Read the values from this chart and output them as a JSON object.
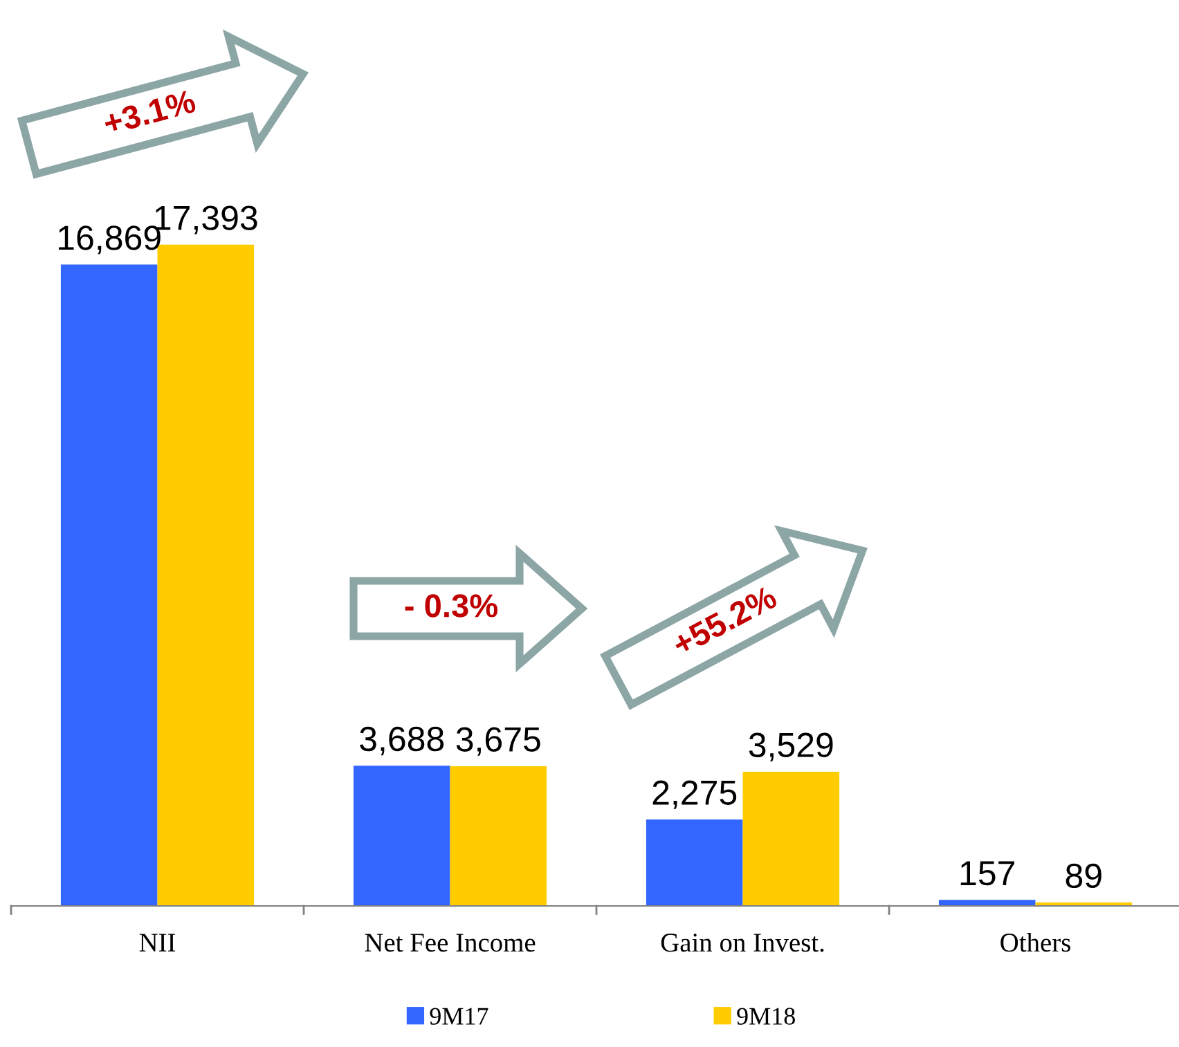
{
  "chart_data": {
    "type": "bar",
    "categories": [
      "NII",
      "Net Fee Income",
      "Gain on Invest.",
      "Others"
    ],
    "series": [
      {
        "name": "9M17",
        "color": "#3366ff",
        "values": [
          16869,
          3688,
          2275,
          157
        ],
        "value_labels": [
          "16,869",
          "3,688",
          "2,275",
          "157"
        ]
      },
      {
        "name": "9M18",
        "color": "#ffcc00",
        "values": [
          17393,
          3675,
          3529,
          89
        ],
        "value_labels": [
          "17,393",
          "3,675",
          "3,529",
          "89"
        ]
      }
    ],
    "legend": "bottom",
    "grid": false,
    "annotations": [
      "+3.1%",
      "- 0.3%",
      "+55.2%"
    ]
  }
}
